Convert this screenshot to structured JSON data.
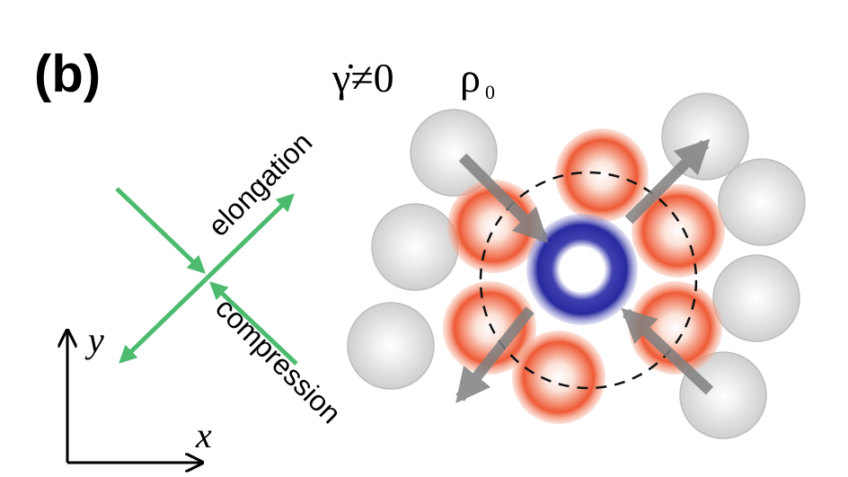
{
  "panel_label": "(b)",
  "condition": "γ̇≠0",
  "density": {
    "symbol": "ρ",
    "subscript": "0"
  },
  "labels": {
    "elongation": "elongation",
    "compression": "compression"
  },
  "axes": {
    "x": "x",
    "y": "y"
  }
}
